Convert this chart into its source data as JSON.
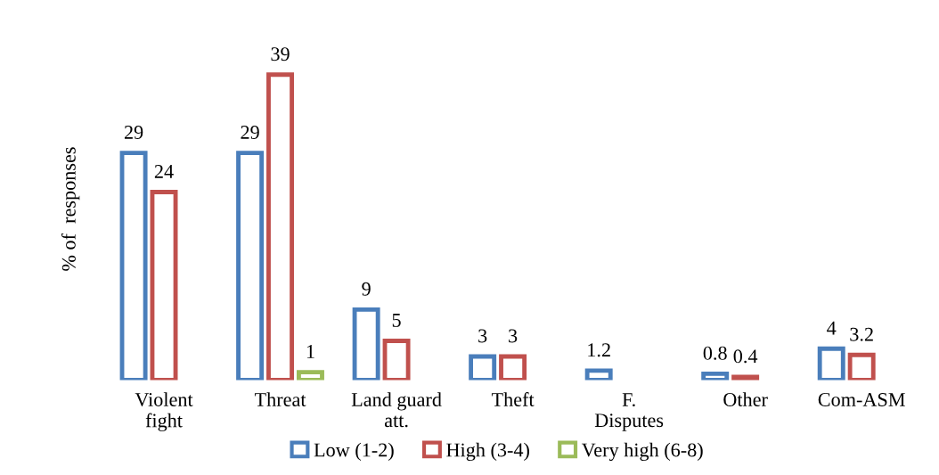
{
  "chart_data": {
    "type": "bar",
    "ylabel": "% of  responses",
    "categories": [
      "Violent\nfight",
      "Threat",
      "Land guard\natt.",
      "Theft",
      "F.\nDisputes",
      "Other",
      "Com-ASM"
    ],
    "series": [
      {
        "name": "Low (1-2)",
        "color": "#4a7ebb",
        "values": [
          29,
          29,
          9,
          3,
          1.2,
          0.8,
          4
        ]
      },
      {
        "name": "High (3-4)",
        "color": "#c0504d",
        "values": [
          24,
          39,
          5,
          3,
          null,
          0.4,
          3.2
        ]
      },
      {
        "name": "Very high (6-8)",
        "color": "#9bbb59",
        "values": [
          null,
          1,
          null,
          null,
          null,
          null,
          null
        ]
      }
    ],
    "data_labels": true,
    "legend": "bottom",
    "grid": false,
    "tick_labels": "x"
  }
}
